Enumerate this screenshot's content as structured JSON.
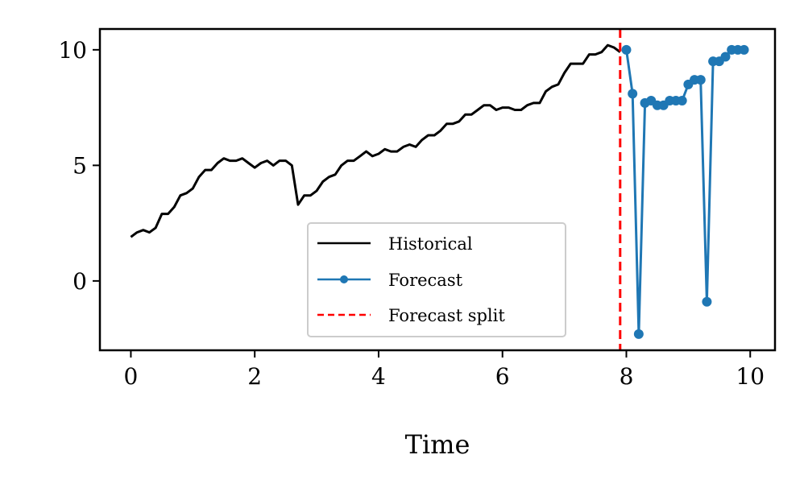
{
  "chart_data": {
    "type": "line",
    "title": "",
    "xlabel": "Time",
    "ylabel": "",
    "xlim": [
      -0.5,
      10.4
    ],
    "ylim": [
      -3.0,
      10.9
    ],
    "xticks": [
      0,
      2,
      4,
      6,
      8,
      10
    ],
    "yticks": [
      0,
      5,
      10
    ],
    "grid": false,
    "legend_position": "lower-center",
    "split_x": 7.9,
    "colors": {
      "historical": "#000000",
      "forecast": "#1f77b4",
      "split": "#ff0000"
    },
    "series": [
      {
        "name": "Historical",
        "style": "solid",
        "x": [
          0.0,
          0.1,
          0.2,
          0.3,
          0.4,
          0.5,
          0.6,
          0.7,
          0.8,
          0.9,
          1.0,
          1.1,
          1.2,
          1.3,
          1.4,
          1.5,
          1.6,
          1.7,
          1.8,
          1.9,
          2.0,
          2.1,
          2.2,
          2.3,
          2.4,
          2.5,
          2.6,
          2.7,
          2.8,
          2.9,
          3.0,
          3.1,
          3.2,
          3.3,
          3.4,
          3.5,
          3.6,
          3.7,
          3.8,
          3.9,
          4.0,
          4.1,
          4.2,
          4.3,
          4.4,
          4.5,
          4.6,
          4.7,
          4.8,
          4.9,
          5.0,
          5.1,
          5.2,
          5.3,
          5.4,
          5.5,
          5.6,
          5.7,
          5.8,
          5.9,
          6.0,
          6.1,
          6.2,
          6.3,
          6.4,
          6.5,
          6.6,
          6.7,
          6.8,
          6.9,
          7.0,
          7.1,
          7.2,
          7.3,
          7.4,
          7.5,
          7.6,
          7.7,
          7.8,
          7.9
        ],
        "values": [
          1.9,
          2.1,
          2.2,
          2.1,
          2.3,
          2.9,
          2.9,
          3.2,
          3.7,
          3.8,
          4.0,
          4.5,
          4.8,
          4.8,
          5.1,
          5.3,
          5.2,
          5.2,
          5.3,
          5.1,
          4.9,
          5.1,
          5.2,
          5.0,
          5.2,
          5.2,
          5.0,
          3.3,
          3.7,
          3.7,
          3.9,
          4.3,
          4.5,
          4.6,
          5.0,
          5.2,
          5.2,
          5.4,
          5.6,
          5.4,
          5.5,
          5.7,
          5.6,
          5.6,
          5.8,
          5.9,
          5.8,
          6.1,
          6.3,
          6.3,
          6.5,
          6.8,
          6.8,
          6.9,
          7.2,
          7.2,
          7.4,
          7.6,
          7.6,
          7.4,
          7.5,
          7.5,
          7.4,
          7.4,
          7.6,
          7.7,
          7.7,
          8.2,
          8.4,
          8.5,
          9.0,
          9.4,
          9.4,
          9.4,
          9.8,
          9.8,
          9.9,
          10.2,
          10.1,
          9.9
        ]
      },
      {
        "name": "Forecast",
        "style": "solid-with-markers",
        "x": [
          8.0,
          8.1,
          8.2,
          8.3,
          8.4,
          8.5,
          8.6,
          8.7,
          8.8,
          8.9,
          9.0,
          9.1,
          9.2,
          9.3,
          9.4,
          9.5,
          9.6,
          9.7,
          9.8,
          9.9
        ],
        "values": [
          10.0,
          8.1,
          -2.3,
          7.7,
          7.8,
          7.6,
          7.6,
          7.8,
          7.8,
          7.8,
          8.5,
          8.7,
          8.7,
          -0.9,
          9.5,
          9.5,
          9.7,
          10.0,
          10.0,
          10.0
        ]
      }
    ],
    "legend": {
      "historical": "Historical",
      "forecast": "Forecast",
      "split": "Forecast split"
    }
  }
}
